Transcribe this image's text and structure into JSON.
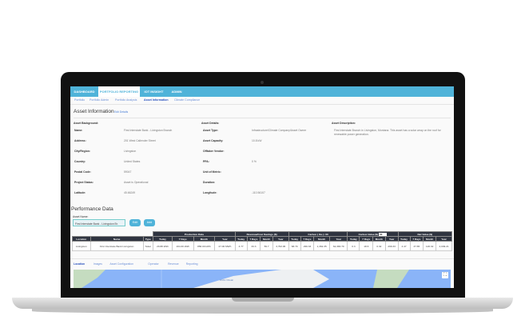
{
  "nav": {
    "tabs": [
      "DASHBOARD",
      "PORTFOLIO REPORTING",
      "IOT INSIGHT",
      "ADMIN"
    ],
    "active": 1
  },
  "subnav": [
    "Portfolio",
    "Portfolio Admin",
    "Portfolio Analysis",
    "Asset Information",
    "Climate Compliance"
  ],
  "asset": {
    "title": "Asset Information",
    "edit_link": "Edit Details",
    "background_label": "Asset Background:",
    "details_label": "Asset Details:",
    "description_label": "Asset Description:",
    "background": [
      [
        "Name:",
        "First Interstate Bank - Livingston Branch"
      ],
      [
        "Address:",
        "201 West Callender Street"
      ],
      [
        "City/Region:",
        "Livingston"
      ],
      [
        "Country:",
        "United States"
      ],
      [
        "Postal Code:",
        "59047"
      ],
      [
        "Project Status:",
        "Asset is Operational"
      ],
      [
        "Latitude:",
        "45.66249"
      ]
    ],
    "details": [
      [
        "Asset Type:",
        "Infrastructure/Climate Company/Asset Owner"
      ],
      [
        "Asset Capacity:",
        "10.8 kW"
      ],
      [
        "Offtaker Vendor:",
        ""
      ],
      [
        "PPA:",
        "0 %"
      ],
      [
        "Unit of Metric:",
        ""
      ],
      [
        "Duration:",
        ""
      ],
      [
        "Longitude:",
        "-110.56107"
      ]
    ],
    "description": "First Interstate Branch in Livingston, Montana. This asset has a solar array on the roof for renewable power generation."
  },
  "performance": {
    "title": "Performance Data",
    "asset_name_label": "Asset Name:",
    "asset_name_value": "First Interstate Bank - Livingston Br.",
    "edit": "Edit",
    "add": "Add",
    "groups": [
      "Production Data",
      "Revenue/Cost Savings ($)",
      "Carbon ( lbs ): 60",
      "Carbon Value ($)",
      "Net Value ($)"
    ],
    "carbon_value_input": "56",
    "columns": [
      "Location",
      "Name",
      "Type",
      "Today",
      "7 Days",
      "Month",
      "Year",
      "Today",
      "7 Days",
      "Month",
      "Year",
      "Today",
      "7 Days",
      "Month",
      "Year",
      "Today",
      "7 Days",
      "Month",
      "Year",
      "Today",
      "7 Days",
      "Month",
      "Year"
    ],
    "rows": [
      [
        "Livingston",
        "First Interstate Bank Livingston",
        "Solar",
        "29.88 kWh",
        "164.30 kWh",
        "856.00 kWh",
        "27.00 MWh",
        "4.77",
        "33.3",
        "59.7",
        "3,793.06",
        "68.79",
        "299.33",
        "1,362.35",
        "62,390.70",
        "0.3",
        "18.6",
        "0.32",
        "299.33",
        "4.47",
        "37.65",
        "126.32",
        "4,049.21"
      ]
    ]
  },
  "bottom_tabs": [
    "Location",
    "Images",
    "Asset Configuration",
    "Operator",
    "Revenue",
    "Reporting"
  ],
  "map": {
    "label": "Arctic Ocean"
  }
}
